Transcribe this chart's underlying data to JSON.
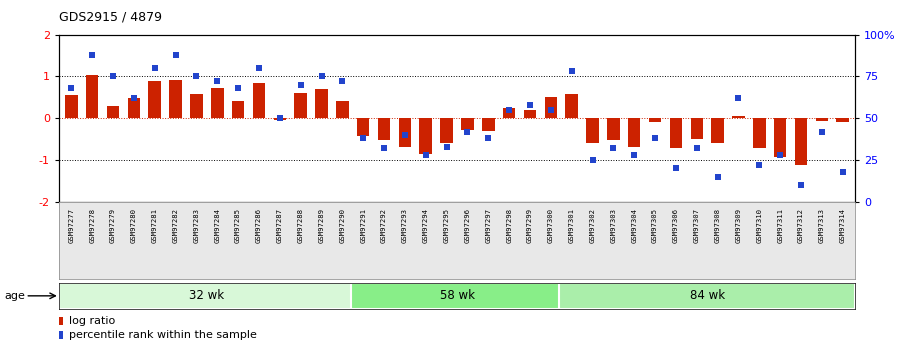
{
  "title": "GDS2915 / 4879",
  "samples": [
    "GSM97277",
    "GSM97278",
    "GSM97279",
    "GSM97280",
    "GSM97281",
    "GSM97282",
    "GSM97283",
    "GSM97284",
    "GSM97285",
    "GSM97286",
    "GSM97287",
    "GSM97288",
    "GSM97289",
    "GSM97290",
    "GSM97291",
    "GSM97292",
    "GSM97293",
    "GSM97294",
    "GSM97295",
    "GSM97296",
    "GSM97297",
    "GSM97298",
    "GSM97299",
    "GSM97300",
    "GSM97301",
    "GSM97302",
    "GSM97303",
    "GSM97304",
    "GSM97305",
    "GSM97306",
    "GSM97307",
    "GSM97308",
    "GSM97309",
    "GSM97310",
    "GSM97311",
    "GSM97312",
    "GSM97313",
    "GSM97314"
  ],
  "log_ratio": [
    0.55,
    1.02,
    0.28,
    0.48,
    0.88,
    0.92,
    0.58,
    0.72,
    0.42,
    0.85,
    -0.04,
    0.6,
    0.7,
    0.4,
    -0.42,
    -0.52,
    -0.68,
    -0.85,
    -0.6,
    -0.28,
    -0.3,
    0.25,
    0.2,
    0.5,
    0.58,
    -0.6,
    -0.52,
    -0.7,
    -0.1,
    -0.72,
    -0.5,
    -0.6,
    0.06,
    -0.72,
    -0.92,
    -1.12,
    -0.06,
    -0.08
  ],
  "percentile_rank": [
    68,
    88,
    75,
    62,
    80,
    88,
    75,
    72,
    68,
    80,
    50,
    70,
    75,
    72,
    38,
    32,
    40,
    28,
    33,
    42,
    38,
    55,
    58,
    55,
    78,
    25,
    32,
    28,
    38,
    20,
    32,
    15,
    62,
    22,
    28,
    10,
    42,
    18
  ],
  "groups": [
    {
      "label": "32 wk",
      "start": 0,
      "end": 14,
      "color": "#d8f8d8"
    },
    {
      "label": "58 wk",
      "start": 14,
      "end": 24,
      "color": "#88ee88"
    },
    {
      "label": "84 wk",
      "start": 24,
      "end": 38,
      "color": "#aaeeaa"
    }
  ],
  "bar_color": "#cc2200",
  "dot_color": "#2244cc",
  "ylim": [
    -2,
    2
  ],
  "yticks_left": [
    -2,
    -1,
    0,
    1,
    2
  ],
  "yticks_right": [
    0,
    25,
    50,
    75,
    100
  ],
  "legend_bar_label": "log ratio",
  "legend_dot_label": "percentile rank within the sample"
}
